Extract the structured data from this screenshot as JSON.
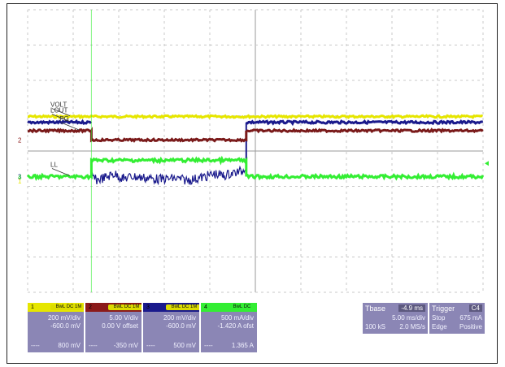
{
  "chart_data": {
    "type": "line",
    "title": "",
    "x_divisions": 10,
    "y_divisions": 8,
    "series": [
      {
        "name": "VOLT",
        "color": "#e6e600",
        "x": [
          0,
          10
        ],
        "y": [
          3.9,
          3.9
        ]
      },
      {
        "name": "LOUT",
        "color": "#1a1a8c",
        "x": [
          0,
          1.4,
          1.4,
          4.8,
          4.8,
          10
        ],
        "y": [
          3.25,
          3.25,
          3.25,
          3.25,
          3.25,
          3.25
        ],
        "drop_trace_x": [
          1.4,
          1.5,
          1.7,
          1.9,
          2.1,
          2.3,
          2.6,
          2.9,
          3.2,
          3.5,
          3.7,
          3.9,
          4.1,
          4.3,
          4.5,
          4.7,
          4.8
        ],
        "drop_trace_y": [
          -2.7,
          -3.3,
          -3.0,
          -2.6,
          -3.1,
          -2.9,
          -3.05,
          -3.2,
          -3.1,
          -3.3,
          -3.15,
          -2.9,
          -2.6,
          -2.8,
          -2.5,
          -2.3,
          -1.6
        ]
      },
      {
        "name": "PG",
        "color": "#7a1a1a",
        "x": [
          0,
          1.4,
          1.4,
          4.8,
          4.8,
          10
        ],
        "y": [
          2.3,
          2.3,
          1.25,
          1.25,
          2.3,
          2.3
        ]
      },
      {
        "name": "LL",
        "color": "#33ee33",
        "x": [
          0,
          1.4,
          1.4,
          4.8,
          4.8,
          10
        ],
        "y": [
          -2.9,
          -2.9,
          -1.05,
          -1.05,
          -2.9,
          -2.9
        ]
      }
    ],
    "trace_labels": [
      "VOLT",
      "LOUT",
      "PG",
      "LL"
    ],
    "left_markers": [
      "1",
      "2",
      "3",
      "4"
    ],
    "grid": true
  },
  "channels": [
    {
      "id": "1",
      "color": "#e6e600",
      "mode": "BwL DC 1M",
      "scale": "200 mV/div",
      "offset": "-600.0 mV",
      "readout": "800 mV"
    },
    {
      "id": "2",
      "color": "#8b1a1a",
      "mode": "BwL DC 1M",
      "scale": "5.00 V/div",
      "offset": "0.00 V offset",
      "readout": "-350 mV"
    },
    {
      "id": "3",
      "color": "#1a1a8c",
      "mode": "BwL DC 1M",
      "scale": "200 mV/div",
      "offset": "-600.0 mV",
      "readout": "500 mV"
    },
    {
      "id": "4",
      "color": "#33ee33",
      "mode": "BwL DC",
      "scale": "500 mA/div",
      "offset": "-1.420 A ofst",
      "readout": "1.365 A"
    }
  ],
  "timebase": {
    "label": "Tbase",
    "value": "-4.9 ms",
    "line2_left": "",
    "line2_right": "5.00 ms/div",
    "line3_left": "100 kS",
    "line3_right": "2.0 MS/s"
  },
  "trigger": {
    "label": "Trigger",
    "value": "C4",
    "line2_left": "Stop",
    "line2_right": "675 mA",
    "line3_left": "Edge",
    "line3_right": "Positive"
  }
}
